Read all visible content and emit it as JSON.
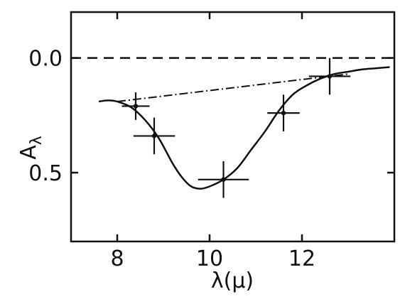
{
  "chart_data": {
    "type": "scatter",
    "xlabel": "λ(μ)",
    "ylabel": "Aλ",
    "ylabel_main": "A",
    "ylabel_sub": "λ",
    "xlim": [
      7.0,
      14.0
    ],
    "ylim": [
      0.8,
      -0.2
    ],
    "y_inverted": true,
    "x_ticks": [
      8,
      10,
      12
    ],
    "x_tick_labels": [
      "8",
      "10",
      "12"
    ],
    "y_ticks": [
      0.0,
      0.5
    ],
    "y_tick_labels": [
      "0.0",
      "0.5"
    ],
    "grid": false,
    "reference_line": {
      "y": 0.0,
      "style": "dashed"
    },
    "continuum_line": {
      "style": "dash-dot",
      "x": [
        8.0,
        13.0
      ],
      "y": [
        0.19,
        0.07
      ]
    },
    "points": [
      {
        "x": 8.4,
        "y": 0.21,
        "xerr": 0.3,
        "yerr": 0.06
      },
      {
        "x": 8.8,
        "y": 0.34,
        "xerr": 0.45,
        "yerr": 0.08
      },
      {
        "x": 10.3,
        "y": 0.53,
        "xerr": 0.55,
        "yerr": 0.08
      },
      {
        "x": 11.6,
        "y": 0.24,
        "xerr": 0.35,
        "yerr": 0.08
      },
      {
        "x": 12.6,
        "y": 0.08,
        "xerr": 0.45,
        "yerr": 0.08
      }
    ],
    "curve": {
      "style": "solid",
      "x": [
        7.6,
        7.8,
        8.0,
        8.3,
        8.6,
        8.9,
        9.2,
        9.4,
        9.6,
        9.8,
        10.0,
        10.3,
        10.6,
        10.9,
        11.2,
        11.5,
        11.8,
        12.1,
        12.4,
        12.7,
        13.0,
        13.3,
        13.6,
        13.9
      ],
      "y": [
        0.19,
        0.185,
        0.19,
        0.215,
        0.27,
        0.35,
        0.46,
        0.52,
        0.56,
        0.57,
        0.56,
        0.53,
        0.48,
        0.4,
        0.32,
        0.23,
        0.16,
        0.12,
        0.09,
        0.07,
        0.06,
        0.05,
        0.045,
        0.04
      ]
    }
  }
}
